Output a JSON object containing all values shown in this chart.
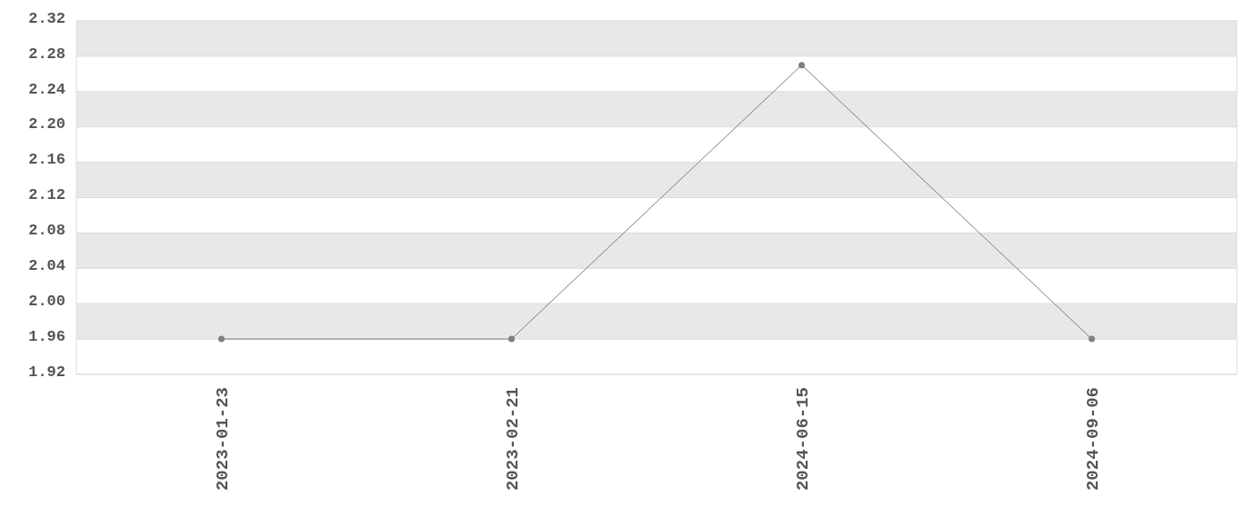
{
  "chart_data": {
    "type": "line",
    "categories": [
      "2023-01-23",
      "2023-02-21",
      "2024-06-15",
      "2024-09-06"
    ],
    "series": [
      {
        "color": "#7f7f7f",
        "values": [
          1.96,
          1.96,
          2.27,
          1.96
        ]
      }
    ],
    "ylim": [
      1.92,
      2.32
    ],
    "yticks": [
      {
        "value": 1.92,
        "label": "1.92"
      },
      {
        "value": 1.96,
        "label": "1.96"
      },
      {
        "value": 2.0,
        "label": "2.00"
      },
      {
        "value": 2.04,
        "label": "2.04"
      },
      {
        "value": 2.08,
        "label": "2.08"
      },
      {
        "value": 2.12,
        "label": "2.12"
      },
      {
        "value": 2.16,
        "label": "2.16"
      },
      {
        "value": 2.2,
        "label": "2.20"
      },
      {
        "value": 2.24,
        "label": "2.24"
      },
      {
        "value": 2.28,
        "label": "2.28"
      },
      {
        "value": 2.32,
        "label": "2.32"
      }
    ],
    "grid": "y",
    "marker": "circle"
  }
}
